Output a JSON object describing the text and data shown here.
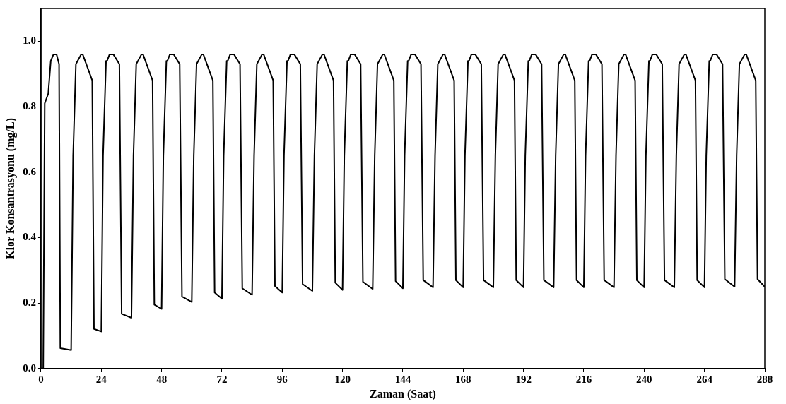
{
  "chart_data": {
    "type": "line",
    "xlabel": "Zaman (Saat)",
    "ylabel": "Klor Konsantrasyonu (mg/L)",
    "xlim": [
      0,
      288
    ],
    "xticks": [
      0,
      24,
      48,
      72,
      96,
      120,
      144,
      168,
      192,
      216,
      240,
      264,
      288
    ],
    "ylim": [
      0,
      1.1
    ],
    "yticks": [
      {
        "value": 0,
        "label": "0.0"
      },
      {
        "value": 0.2,
        "label": "0.2"
      },
      {
        "value": 0.4,
        "label": "0.4"
      },
      {
        "value": 0.6,
        "label": "0.6"
      },
      {
        "value": 0.8,
        "label": "0.8"
      },
      {
        "value": 1,
        "label": "1.0"
      }
    ],
    "grid": false,
    "legend": false,
    "marker": "none",
    "line_style": "solid",
    "series": [
      {
        "color": "#000000",
        "x": [
          0,
          0.9,
          1.5,
          2.9,
          3.9,
          5.0,
          6.2,
          7.2,
          7.7,
          12,
          12.8,
          13.9,
          16,
          16.6,
          18.5,
          20.4,
          21.1,
          24,
          24.7,
          25.9,
          26.3,
          27.3,
          28.8,
          31.2,
          32.1,
          36,
          36.8,
          37.9,
          40,
          40.6,
          42.5,
          44.4,
          45.1,
          48,
          48.7,
          49.9,
          50.3,
          51.3,
          52.8,
          55.2,
          56.1,
          60,
          60.8,
          61.9,
          64,
          64.6,
          66.5,
          68.4,
          69.1,
          72,
          72.7,
          73.9,
          74.3,
          75.3,
          76.8,
          79.2,
          80.1,
          84,
          84.8,
          85.9,
          88,
          88.6,
          90.5,
          92.4,
          93.1,
          96,
          96.7,
          97.9,
          98.3,
          99.3,
          100.8,
          103.2,
          104.1,
          108,
          108.8,
          109.9,
          112,
          112.6,
          114.5,
          116.4,
          117.1,
          120,
          120.7,
          121.9,
          122.3,
          123.3,
          124.8,
          127.2,
          128.1,
          132,
          132.8,
          133.9,
          136,
          136.6,
          138.5,
          140.4,
          141.1,
          144,
          144.7,
          145.9,
          146.3,
          147.3,
          148.8,
          151.2,
          152.1,
          156,
          156.8,
          157.9,
          160,
          160.6,
          162.5,
          164.4,
          165.1,
          168,
          168.7,
          169.9,
          170.3,
          171.3,
          172.8,
          175.2,
          176.1,
          180,
          180.8,
          181.9,
          184,
          184.6,
          186.5,
          188.4,
          189.1,
          192,
          192.7,
          193.9,
          194.3,
          195.3,
          196.8,
          199.2,
          200.1,
          204,
          204.8,
          205.9,
          208,
          208.6,
          210.5,
          212.4,
          213.1,
          216,
          216.7,
          217.9,
          218.3,
          219.3,
          220.8,
          223.2,
          224.1,
          228,
          228.8,
          229.9,
          232,
          232.6,
          234.5,
          236.4,
          237.1,
          240,
          240.7,
          241.9,
          242.3,
          243.3,
          244.8,
          247.2,
          248.1,
          252,
          252.8,
          253.9,
          256,
          256.6,
          258.5,
          260.4,
          261.1,
          264,
          264.7,
          265.9,
          266.3,
          267.3,
          268.8,
          271.2,
          272.1,
          276,
          276.8,
          277.9,
          280,
          280.6,
          282.5,
          284.4,
          285.1,
          288
        ],
        "values": [
          0,
          0,
          0.81,
          0.84,
          0.94,
          0.96,
          0.96,
          0.93,
          0.062,
          0.056,
          0.65,
          0.93,
          0.96,
          0.96,
          0.92,
          0.88,
          0.121,
          0.113,
          0.65,
          0.94,
          0.94,
          0.96,
          0.96,
          0.93,
          0.167,
          0.155,
          0.65,
          0.93,
          0.96,
          0.96,
          0.92,
          0.88,
          0.195,
          0.182,
          0.65,
          0.94,
          0.94,
          0.96,
          0.96,
          0.93,
          0.22,
          0.203,
          0.65,
          0.93,
          0.96,
          0.96,
          0.92,
          0.88,
          0.232,
          0.213,
          0.65,
          0.94,
          0.94,
          0.96,
          0.96,
          0.93,
          0.245,
          0.225,
          0.65,
          0.93,
          0.96,
          0.96,
          0.92,
          0.88,
          0.252,
          0.232,
          0.65,
          0.94,
          0.94,
          0.96,
          0.96,
          0.93,
          0.258,
          0.237,
          0.65,
          0.93,
          0.96,
          0.96,
          0.92,
          0.88,
          0.262,
          0.24,
          0.65,
          0.94,
          0.94,
          0.96,
          0.96,
          0.93,
          0.265,
          0.243,
          0.65,
          0.93,
          0.96,
          0.96,
          0.92,
          0.88,
          0.267,
          0.245,
          0.65,
          0.94,
          0.94,
          0.96,
          0.96,
          0.93,
          0.27,
          0.248,
          0.65,
          0.93,
          0.96,
          0.96,
          0.92,
          0.88,
          0.27,
          0.248,
          0.65,
          0.94,
          0.94,
          0.96,
          0.96,
          0.93,
          0.27,
          0.248,
          0.65,
          0.93,
          0.96,
          0.96,
          0.92,
          0.88,
          0.27,
          0.248,
          0.65,
          0.94,
          0.94,
          0.96,
          0.96,
          0.93,
          0.27,
          0.248,
          0.65,
          0.93,
          0.96,
          0.96,
          0.92,
          0.88,
          0.27,
          0.248,
          0.65,
          0.94,
          0.94,
          0.96,
          0.96,
          0.93,
          0.27,
          0.248,
          0.65,
          0.93,
          0.96,
          0.96,
          0.92,
          0.88,
          0.27,
          0.248,
          0.65,
          0.94,
          0.94,
          0.96,
          0.96,
          0.93,
          0.27,
          0.248,
          0.65,
          0.93,
          0.96,
          0.96,
          0.92,
          0.88,
          0.27,
          0.248,
          0.65,
          0.94,
          0.94,
          0.96,
          0.96,
          0.93,
          0.273,
          0.25,
          0.65,
          0.93,
          0.96,
          0.96,
          0.92,
          0.88,
          0.273,
          0.25
        ]
      }
    ]
  }
}
